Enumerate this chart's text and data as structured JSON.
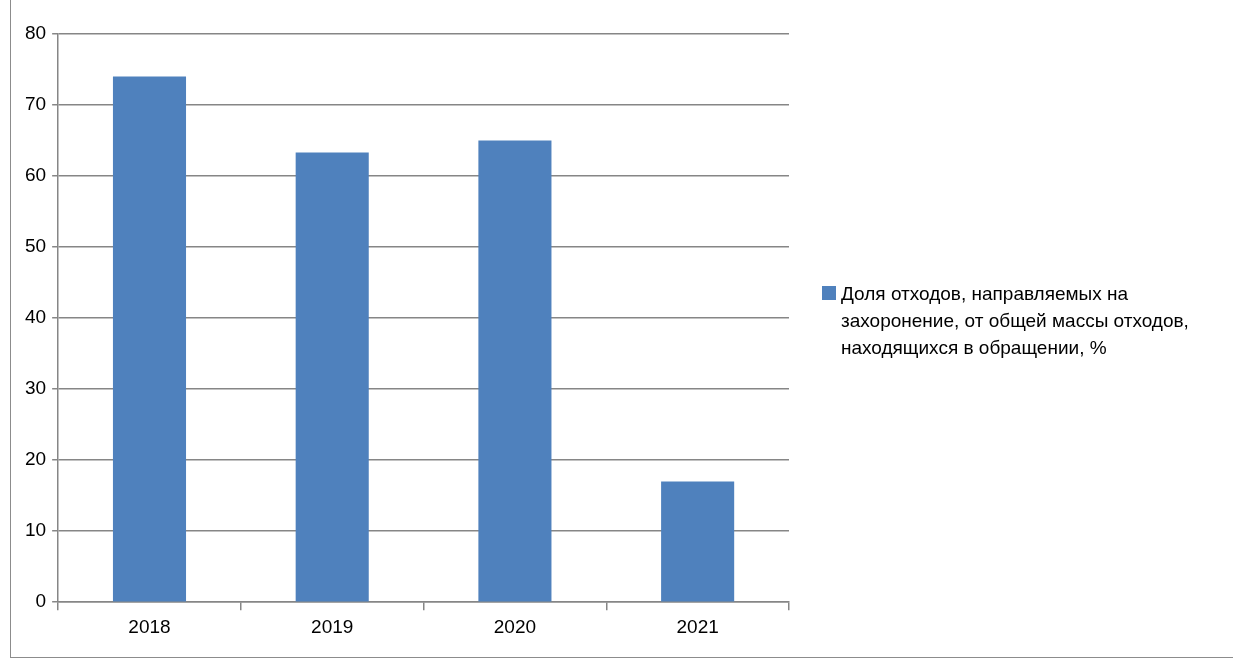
{
  "chart_data": {
    "type": "bar",
    "categories": [
      "2018",
      "2019",
      "2020",
      "2021"
    ],
    "series": [
      {
        "name": "Доля отходов, направляемых на захоронение, от общей массы отходов, находящихся в обращении, %",
        "color": "#4f81bd",
        "values": [
          74,
          63.3,
          65,
          17
        ]
      }
    ],
    "ylim": [
      0,
      80
    ],
    "yticks": [
      0,
      10,
      20,
      30,
      40,
      50,
      60,
      70,
      80
    ],
    "grid": "y",
    "legend": "right"
  }
}
